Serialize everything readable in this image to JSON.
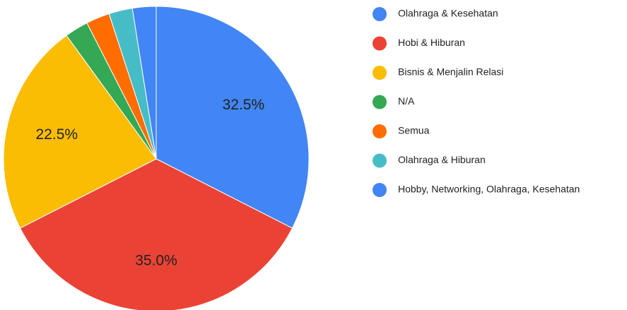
{
  "chart_data": {
    "type": "pie",
    "categories": [
      "Olahraga & Kesehatan",
      "Hobi & Hiburan",
      "Bisnis & Menjalin Relasi",
      "N/A",
      "Semua",
      "Olahraga & Hiburan",
      "Hobby, Networking, Olahraga, Kesehatan"
    ],
    "values": [
      32.5,
      35.0,
      22.5,
      2.5,
      2.5,
      2.5,
      2.5
    ],
    "value_labels": [
      "32.5%",
      "35.0%",
      "22.5%",
      null,
      null,
      null,
      null
    ],
    "colors": [
      "#4285f4",
      "#ea4335",
      "#fbbc04",
      "#34a853",
      "#ff6d01",
      "#46bdc6",
      "#4285f4"
    ],
    "legend": "right"
  }
}
